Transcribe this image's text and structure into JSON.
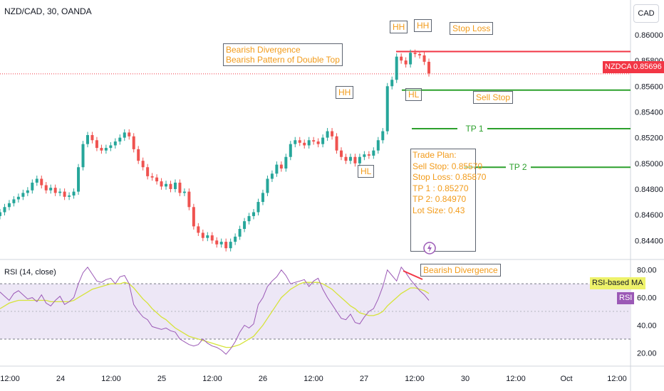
{
  "header": {
    "ticker": "NZD/CAD, 30, OANDA",
    "currency_button": "CAD"
  },
  "colors": {
    "up": "#26a69a",
    "down": "#ef5350",
    "annotation": "#f29b1a",
    "stop_loss": "#f23645",
    "take_profit": "#2ca02c",
    "rsi": "#9b59b6",
    "rsi_ma": "#d6e33a",
    "rsi_band": "#ede7f6"
  },
  "price_axis": {
    "ticks": [
      "0.86000",
      "0.85800",
      "0.85600",
      "0.85400",
      "0.85200",
      "0.85000",
      "0.84800",
      "0.84600",
      "0.84400"
    ],
    "symbol_label": "NZDCAD",
    "current_price": "0.85696"
  },
  "rsi_axis": {
    "ticks": [
      "80.00",
      "60.00",
      "40.00",
      "20.00"
    ],
    "ma_label": "RSI-based MA",
    "rsi_label": "RSI"
  },
  "time_axis": {
    "ticks": [
      "12:00",
      "24",
      "12:00",
      "25",
      "12:00",
      "26",
      "12:00",
      "27",
      "12:00",
      "30",
      "12:00",
      "Oct",
      "12:00"
    ]
  },
  "rsi_title": "RSI (14, close)",
  "annotations": {
    "divergence_note": [
      "Bearish Divergence",
      "Bearish Pattern of Double Top"
    ],
    "hh1": "HH",
    "hh2": "HH",
    "hh3": "HH",
    "hl1": "HL",
    "hl2": "HL",
    "stop_loss": "Stop Loss",
    "sell_stop": "Sell Stop",
    "tp1": "TP 1",
    "tp2": "TP 2",
    "rsi_divergence": "Bearish Divergence",
    "trade_plan": [
      "Trade Plan:",
      "",
      "Sell Stop: 0.85570",
      "Stop Loss: 0.85870",
      "TP 1 : 0.85270",
      "TP 2: 0.84970",
      "",
      "Lot Size: 0.43"
    ]
  },
  "levels": {
    "stop_loss": 0.8587,
    "sell_stop": 0.8557,
    "tp1": 0.8527,
    "tp2": 0.8497
  },
  "chart_data": {
    "type": "line",
    "title": "NZD/CAD, 30, OANDA",
    "price_range": [
      0.8428,
      0.8616
    ],
    "rsi_range": [
      13,
      85
    ],
    "series": [
      {
        "name": "NZDCAD",
        "values": [
          0.8462,
          0.8466,
          0.8469,
          0.8472,
          0.8474,
          0.8477,
          0.8479,
          0.8485,
          0.8488,
          0.8483,
          0.8479,
          0.8481,
          0.8477,
          0.8478,
          0.8474,
          0.8475,
          0.8478,
          0.8497,
          0.8515,
          0.8522,
          0.8518,
          0.8512,
          0.851,
          0.8512,
          0.8514,
          0.8517,
          0.852,
          0.8524,
          0.8521,
          0.8511,
          0.8502,
          0.8497,
          0.849,
          0.8489,
          0.8486,
          0.8482,
          0.8484,
          0.848,
          0.8485,
          0.8477,
          0.8478,
          0.8466,
          0.8451,
          0.8446,
          0.8442,
          0.8444,
          0.844,
          0.8437,
          0.8439,
          0.8434,
          0.8439,
          0.8443,
          0.8449,
          0.8455,
          0.8459,
          0.8462,
          0.847,
          0.8477,
          0.8488,
          0.8492,
          0.8499,
          0.8496,
          0.8505,
          0.8515,
          0.8518,
          0.8516,
          0.8514,
          0.8518,
          0.8517,
          0.8515,
          0.852,
          0.8525,
          0.8521,
          0.851,
          0.8505,
          0.8502,
          0.8505,
          0.85,
          0.8505,
          0.8507,
          0.8506,
          0.851,
          0.8518,
          0.8525,
          0.856,
          0.8565,
          0.8583,
          0.858,
          0.8577,
          0.8586,
          0.8585,
          0.8584,
          0.8579,
          0.857
        ]
      },
      {
        "name": "RSI",
        "values": [
          64,
          61,
          58,
          63,
          65,
          62,
          59,
          60,
          57,
          62,
          56,
          54,
          58,
          61,
          55,
          57,
          60,
          70,
          78,
          82,
          77,
          72,
          71,
          73,
          74,
          70,
          75,
          76,
          70,
          55,
          50,
          46,
          44,
          39,
          38,
          37,
          38,
          36,
          35,
          30,
          28,
          26,
          25,
          26,
          30,
          27,
          25,
          24,
          22,
          19,
          23,
          28,
          35,
          40,
          38,
          41,
          55,
          60,
          68,
          72,
          75,
          80,
          76,
          70,
          71,
          72,
          73,
          68,
          72,
          74,
          66,
          60,
          55,
          50,
          45,
          44,
          48,
          42,
          41,
          46,
          50,
          52,
          59,
          68,
          80,
          76,
          72,
          82,
          78,
          73,
          69,
          65,
          62,
          58
        ]
      },
      {
        "name": "RSI-based MA",
        "values": [
          52,
          54,
          56,
          57,
          58,
          58,
          58,
          58,
          58,
          58,
          58,
          57,
          57,
          57,
          57,
          57,
          58,
          60,
          62,
          64,
          66,
          67,
          68,
          69,
          70,
          70,
          70,
          71,
          70,
          67,
          63,
          59,
          56,
          52,
          49,
          46,
          44,
          41,
          38,
          36,
          34,
          32,
          31,
          30,
          29,
          28,
          27,
          26,
          25,
          24,
          24,
          25,
          26,
          28,
          30,
          32,
          36,
          40,
          45,
          50,
          55,
          60,
          63,
          66,
          68,
          70,
          71,
          71,
          71,
          71,
          70,
          68,
          66,
          63,
          60,
          57,
          54,
          52,
          49,
          48,
          47,
          47,
          48,
          50,
          54,
          57,
          60,
          63,
          65,
          67,
          67,
          66,
          65,
          63
        ]
      }
    ]
  }
}
